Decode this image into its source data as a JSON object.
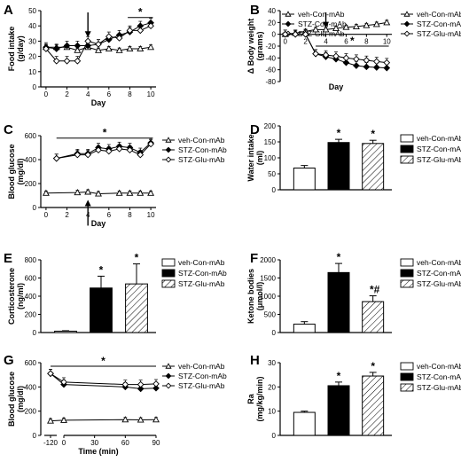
{
  "chart_data": [
    {
      "panel": "A",
      "type": "line",
      "xlabel": "Day",
      "ylabel": "Food intake\n(g/day)",
      "xlim": [
        -0.5,
        10.5
      ],
      "ylim": [
        0,
        50
      ],
      "xticks": [
        0,
        2,
        4,
        6,
        8,
        10
      ],
      "yticks": [
        0,
        10,
        20,
        30,
        40,
        50
      ],
      "x": [
        0,
        1,
        2,
        3,
        4,
        5,
        6,
        7,
        8,
        9,
        10
      ],
      "series": [
        {
          "name": "veh-Con-mAb",
          "marker": "open-triangle",
          "values": [
            26,
            26,
            26,
            24,
            26,
            24,
            25,
            24,
            25,
            25,
            26
          ]
        },
        {
          "name": "STZ-Con-mAb",
          "marker": "filled-diamond",
          "values": [
            26,
            25,
            27,
            27,
            27,
            28,
            31,
            34,
            36,
            40,
            42
          ]
        },
        {
          "name": "STZ-Glu-mAb",
          "marker": "open-diamond",
          "values": [
            25,
            17,
            17,
            17,
            30,
            28,
            33,
            32,
            37,
            37,
            40
          ]
        }
      ],
      "annotations": [
        "*",
        "↓ day 4"
      ]
    },
    {
      "panel": "B",
      "type": "line",
      "xlabel": "Day",
      "ylabel": "Δ Body weight\n(grams)",
      "xlim": [
        -0.5,
        10.5
      ],
      "ylim": [
        -80,
        40
      ],
      "xticks": [
        0,
        2,
        4,
        6,
        8,
        10
      ],
      "yticks": [
        -80,
        -60,
        -40,
        -20,
        0,
        20,
        40
      ],
      "x": [
        0,
        1,
        2,
        3,
        4,
        5,
        6,
        7,
        8,
        9,
        10
      ],
      "series": [
        {
          "name": "veh-Con-mAb",
          "marker": "open-triangle",
          "values": [
            0,
            2,
            5,
            8,
            8,
            10,
            12,
            13,
            15,
            17,
            20
          ]
        },
        {
          "name": "STZ-Con-mAb",
          "marker": "filled-diamond",
          "values": [
            0,
            0,
            0,
            -33,
            -38,
            -42,
            -48,
            -53,
            -55,
            -56,
            -57
          ]
        },
        {
          "name": "STZ-Glu-mAb",
          "marker": "open-diamond",
          "values": [
            0,
            0,
            0,
            -33,
            -35,
            -37,
            -40,
            -42,
            -44,
            -46,
            -48
          ]
        }
      ],
      "annotations": [
        "*",
        "↓ day 4"
      ]
    },
    {
      "panel": "C",
      "type": "line",
      "xlabel": "Day",
      "ylabel": "Blood glucose\n(mg/dl)",
      "xlim": [
        -0.5,
        10.5
      ],
      "ylim": [
        0,
        600
      ],
      "xticks": [
        0,
        2,
        4,
        6,
        8,
        10
      ],
      "yticks": [
        0,
        200,
        400,
        600
      ],
      "series": [
        {
          "name": "veh-Con-mAb",
          "marker": "open-triangle",
          "x": [
            0,
            3,
            4,
            5,
            7,
            8,
            9,
            10
          ],
          "values": [
            120,
            125,
            130,
            115,
            120,
            120,
            120,
            120
          ]
        },
        {
          "name": "STZ-Con-mAb",
          "marker": "filled-diamond",
          "x": [
            1,
            3,
            4,
            5,
            6,
            7,
            8,
            9,
            10
          ],
          "values": [
            410,
            450,
            450,
            500,
            490,
            510,
            500,
            460,
            540
          ]
        },
        {
          "name": "STZ-Glu-mAb",
          "marker": "open-diamond",
          "x": [
            1,
            3,
            4,
            5,
            6,
            7,
            8,
            9,
            10
          ],
          "values": [
            410,
            440,
            440,
            480,
            470,
            490,
            480,
            440,
            530
          ]
        }
      ],
      "annotations": [
        "*",
        "↑ day 4"
      ]
    },
    {
      "panel": "D",
      "type": "bar",
      "ylabel": "Water intake\n(ml)",
      "ylim": [
        0,
        200
      ],
      "yticks": [
        0,
        50,
        100,
        150,
        200
      ],
      "categories": [
        "veh-Con-mAb",
        "STZ-Con-mAb",
        "STZ-Glu-mAb"
      ],
      "values": [
        68,
        148,
        145
      ],
      "errors": [
        8,
        10,
        10
      ],
      "bar_marks": [
        "",
        "*",
        "*"
      ]
    },
    {
      "panel": "E",
      "type": "bar",
      "ylabel": "Corticosterone\n(ng/ml)",
      "ylim": [
        0,
        800
      ],
      "yticks": [
        0,
        200,
        400,
        600,
        800
      ],
      "categories": [
        "veh-Con-mAb",
        "STZ-Con-mAb",
        "STZ-Glu-mAb"
      ],
      "values": [
        15,
        490,
        535
      ],
      "errors": [
        5,
        130,
        220
      ],
      "bar_marks": [
        "",
        "*",
        "*"
      ]
    },
    {
      "panel": "F",
      "type": "bar",
      "ylabel": "Ketone bodies\n(μmol/l)",
      "ylim": [
        0,
        2000
      ],
      "yticks": [
        0,
        500,
        1000,
        1500,
        2000
      ],
      "categories": [
        "veh-Con-mAb",
        "STZ-Con-mAb",
        "STZ-Glu-mAb"
      ],
      "values": [
        230,
        1650,
        850
      ],
      "errors": [
        70,
        250,
        160
      ],
      "bar_marks": [
        "",
        "*",
        "*#"
      ]
    },
    {
      "panel": "G",
      "type": "line",
      "xlabel": "Time (min)",
      "ylabel": "Blood glucose\n(mg/dl)",
      "ylim": [
        0,
        600
      ],
      "yticks": [
        0,
        200,
        400,
        600
      ],
      "xticks": [
        -120,
        0,
        30,
        60,
        90
      ],
      "x": [
        -120,
        0,
        60,
        75,
        90
      ],
      "series": [
        {
          "name": "veh-Con-mAb",
          "marker": "open-triangle",
          "values": [
            120,
            125,
            130,
            128,
            130
          ]
        },
        {
          "name": "STZ-Con-mAb",
          "marker": "filled-diamond",
          "values": [
            510,
            420,
            400,
            385,
            390
          ]
        },
        {
          "name": "STZ-Glu-mAb",
          "marker": "open-diamond",
          "values": [
            510,
            440,
            420,
            420,
            425
          ]
        }
      ],
      "annotations": [
        "*"
      ]
    },
    {
      "panel": "H",
      "type": "bar",
      "ylabel": "Ra\n(mg/kg/min)",
      "ylim": [
        0,
        30
      ],
      "yticks": [
        0,
        10,
        20,
        30
      ],
      "categories": [
        "veh-Con-mAb",
        "STZ-Con-mAb",
        "STZ-Glu-mAb"
      ],
      "values": [
        9.5,
        20.5,
        24.5
      ],
      "errors": [
        0.5,
        1.5,
        1.5
      ],
      "bar_marks": [
        "",
        "*",
        "*"
      ]
    }
  ]
}
